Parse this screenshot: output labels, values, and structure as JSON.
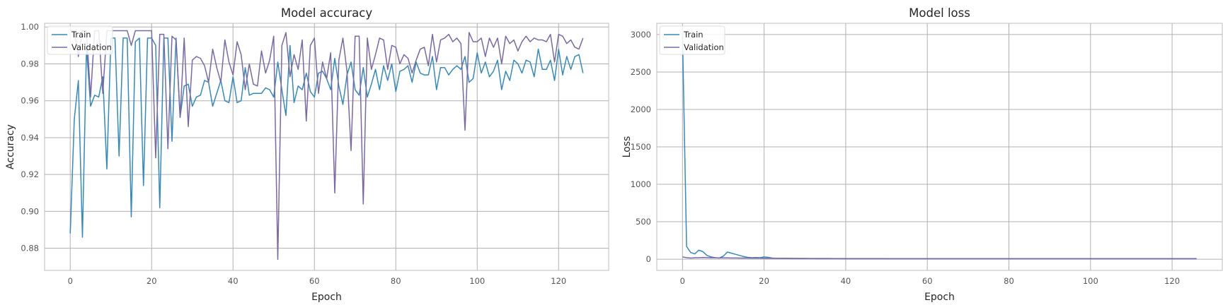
{
  "colors": {
    "train": "#348abd",
    "validation": "#7a68a6",
    "grid": "#b0b0b0",
    "frame": "#bcbcbc"
  },
  "chart_data": [
    {
      "type": "line",
      "title": "Model accuracy",
      "xlabel": "Epoch",
      "ylabel": "Accuracy",
      "xlim": [
        -6.3,
        132.3
      ],
      "ylim": [
        0.868,
        1.002
      ],
      "xticks": [
        0,
        20,
        40,
        60,
        80,
        100,
        120
      ],
      "xtick_labels": [
        "0",
        "20",
        "40",
        "60",
        "80",
        "100",
        "120"
      ],
      "yticks": [
        0.88,
        0.9,
        0.92,
        0.94,
        0.96,
        0.98,
        1.0
      ],
      "ytick_labels": [
        "0.88",
        "0.90",
        "0.92",
        "0.94",
        "0.96",
        "0.98",
        "1.00"
      ],
      "grid": true,
      "legend": "upper-left",
      "series": [
        {
          "name": "Train",
          "color_key": "train",
          "values": [
            0.888,
            0.95,
            0.971,
            0.886,
            0.989,
            0.957,
            0.963,
            0.962,
            0.973,
            0.923,
            0.994,
            0.994,
            0.93,
            0.994,
            0.994,
            0.897,
            0.992,
            0.994,
            0.914,
            0.994,
            0.994,
            0.99,
            0.902,
            0.994,
            0.994,
            0.938,
            0.994,
            0.951,
            0.968,
            0.969,
            0.957,
            0.962,
            0.963,
            0.971,
            0.97,
            0.957,
            0.964,
            0.971,
            0.96,
            0.959,
            0.973,
            0.959,
            0.96,
            0.978,
            0.963,
            0.964,
            0.964,
            0.964,
            0.967,
            0.966,
            0.962,
            0.981,
            0.966,
            0.952,
            0.99,
            0.959,
            0.968,
            0.966,
            0.975,
            0.965,
            0.962,
            0.975,
            0.976,
            0.972,
            0.966,
            0.983,
            0.968,
            0.958,
            0.974,
            0.981,
            0.966,
            0.963,
            0.978,
            0.962,
            0.969,
            0.977,
            0.966,
            0.979,
            0.971,
            0.98,
            0.965,
            0.976,
            0.977,
            0.979,
            0.97,
            0.981,
            0.975,
            0.974,
            0.974,
            0.984,
            0.966,
            0.978,
            0.978,
            0.974,
            0.977,
            0.979,
            0.977,
            0.984,
            0.97,
            0.972,
            0.986,
            0.975,
            0.981,
            0.973,
            0.976,
            0.982,
            0.966,
            0.976,
            0.971,
            0.982,
            0.98,
            0.975,
            0.982,
            0.981,
            0.973,
            0.988,
            0.977,
            0.977,
            0.982,
            0.971,
            0.988,
            0.974,
            0.984,
            0.977,
            0.984,
            0.985,
            0.975
          ]
        },
        {
          "name": "Validation",
          "color_key": "validation",
          "values": [
            0.998,
            0.998,
            0.984,
            0.998,
            0.998,
            0.962,
            0.998,
            0.998,
            0.964,
            0.998,
            0.998,
            0.998,
            0.998,
            0.998,
            0.998,
            0.99,
            0.998,
            0.998,
            0.998,
            0.998,
            0.998,
            0.929,
            0.996,
            0.996,
            0.934,
            0.995,
            0.993,
            0.951,
            0.994,
            0.946,
            0.982,
            0.984,
            0.983,
            0.979,
            0.97,
            0.988,
            0.978,
            0.97,
            0.993,
            0.981,
            0.974,
            0.992,
            0.985,
            0.966,
            0.98,
            0.969,
            0.968,
            0.987,
            0.975,
            0.982,
            0.995,
            0.874,
            0.99,
            0.997,
            0.973,
            0.985,
            0.977,
            0.993,
            0.949,
            0.99,
            0.994,
            0.964,
            0.981,
            0.972,
            0.986,
            0.91,
            0.982,
            0.994,
            0.976,
            0.933,
            0.995,
            0.995,
            0.904,
            0.994,
            0.977,
            0.985,
            0.994,
            0.993,
            0.977,
            0.99,
            0.989,
            0.98,
            0.985,
            0.983,
            0.975,
            0.982,
            0.988,
            0.989,
            0.979,
            0.996,
            0.981,
            0.993,
            0.994,
            0.996,
            0.992,
            0.994,
            0.991,
            0.944,
            0.997,
            0.992,
            0.992,
            0.994,
            0.984,
            0.994,
            0.989,
            0.994,
            0.98,
            0.995,
            0.991,
            0.993,
            0.987,
            0.992,
            0.995,
            0.992,
            0.994,
            0.993,
            0.993,
            0.992,
            0.996,
            0.981,
            0.996,
            0.995,
            0.991,
            0.993,
            0.989,
            0.988,
            0.994
          ]
        }
      ]
    },
    {
      "type": "line",
      "title": "Model loss",
      "xlabel": "Epoch",
      "ylabel": "Loss",
      "xlim": [
        -6.3,
        132.3
      ],
      "ylim": [
        -150,
        3150
      ],
      "xticks": [
        0,
        20,
        40,
        60,
        80,
        100,
        120
      ],
      "xtick_labels": [
        "0",
        "20",
        "40",
        "60",
        "80",
        "100",
        "120"
      ],
      "yticks": [
        0,
        500,
        1000,
        1500,
        2000,
        2500,
        3000
      ],
      "ytick_labels": [
        "0",
        "500",
        "1000",
        "1500",
        "2000",
        "2500",
        "3000"
      ],
      "grid": true,
      "legend": "upper-left",
      "series": [
        {
          "name": "Train",
          "color_key": "train",
          "values": [
            2990,
            170,
            90,
            70,
            120,
            100,
            50,
            30,
            20,
            15,
            40,
            95,
            80,
            65,
            50,
            35,
            25,
            20,
            22,
            20,
            30,
            25,
            15,
            12,
            11,
            10,
            10,
            9,
            9,
            8,
            8,
            8,
            8,
            7,
            7,
            7,
            7,
            7,
            7,
            6,
            6,
            6,
            6,
            6,
            6,
            6,
            6,
            6,
            6,
            6,
            6,
            6,
            6,
            6,
            6,
            6,
            6,
            6,
            6,
            6,
            6,
            6,
            6,
            5,
            5,
            5,
            5,
            5,
            5,
            5,
            5,
            5,
            5,
            5,
            5,
            5,
            5,
            5,
            5,
            5,
            5,
            5,
            5,
            5,
            5,
            5,
            5,
            5,
            5,
            5,
            5,
            5,
            5,
            5,
            5,
            5,
            5,
            5,
            5,
            5,
            5,
            5,
            5,
            5,
            5,
            5,
            5,
            5,
            5,
            5,
            5,
            5,
            5,
            5,
            5,
            5,
            5,
            5,
            5,
            5,
            5,
            5,
            5,
            5,
            5,
            5,
            5
          ]
        },
        {
          "name": "Validation",
          "color_key": "validation",
          "values": [
            30,
            20,
            15,
            18,
            20,
            22,
            20,
            18,
            18,
            17,
            17,
            17,
            16,
            16,
            15,
            15,
            15,
            14,
            14,
            14,
            13,
            13,
            12,
            12,
            11,
            11,
            11,
            10,
            10,
            10,
            10,
            9,
            9,
            9,
            9,
            9,
            9,
            8,
            8,
            8,
            8,
            8,
            8,
            8,
            8,
            8,
            8,
            8,
            8,
            8,
            7,
            7,
            7,
            7,
            7,
            7,
            7,
            7,
            7,
            7,
            7,
            7,
            7,
            7,
            7,
            7,
            7,
            7,
            7,
            7,
            7,
            7,
            7,
            7,
            7,
            7,
            7,
            7,
            7,
            7,
            7,
            7,
            7,
            7,
            7,
            7,
            7,
            7,
            7,
            7,
            7,
            7,
            7,
            7,
            7,
            7,
            7,
            7,
            7,
            7,
            7,
            7,
            7,
            7,
            7,
            7,
            7,
            7,
            7,
            7,
            7,
            7,
            7,
            7,
            7,
            7,
            7,
            7,
            7,
            7,
            7,
            7,
            7,
            7,
            7,
            7,
            7
          ]
        }
      ]
    }
  ]
}
